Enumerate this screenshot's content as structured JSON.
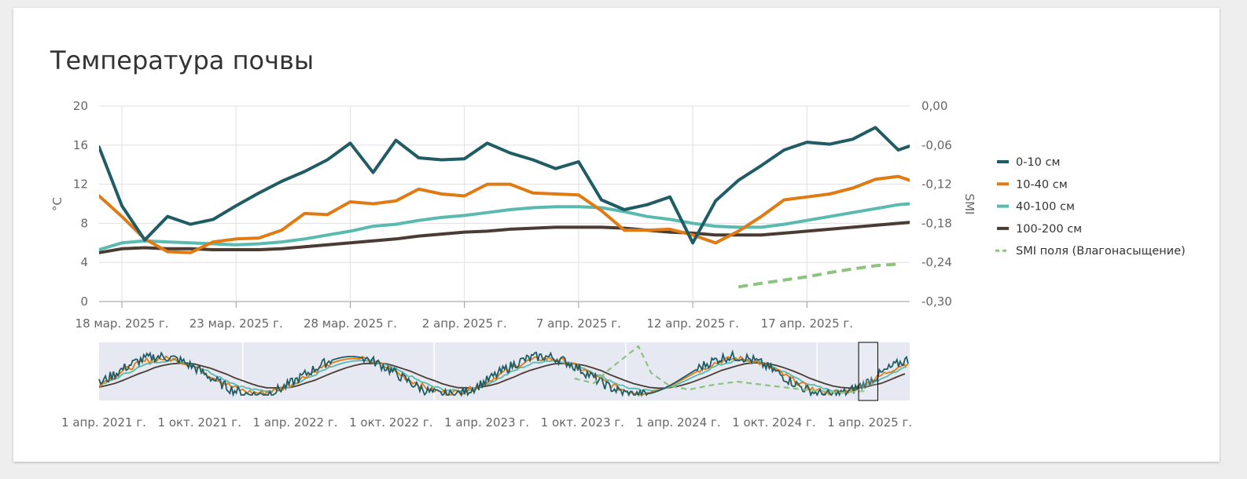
{
  "page": {
    "title": "Температура почвы"
  },
  "chart_data": {
    "type": "line",
    "title": "Температура почвы",
    "ylabel": "°C",
    "y2label": "SMI",
    "ylim": [
      0,
      20
    ],
    "y2lim": [
      -0.3,
      0.0
    ],
    "yticks": [
      "0",
      "4",
      "8",
      "12",
      "16",
      "20"
    ],
    "y2ticks": [
      "-0,30",
      "-0,24",
      "-0,18",
      "-0,12",
      "-0,06",
      "0,00"
    ],
    "x_range_days": [
      0,
      35.5
    ],
    "x_ticks": [
      {
        "day": 1,
        "label": "18 мар. 2025 г."
      },
      {
        "day": 6,
        "label": "23 мар. 2025 г."
      },
      {
        "day": 11,
        "label": "28 мар. 2025 г."
      },
      {
        "day": 16,
        "label": "2 апр. 2025 г."
      },
      {
        "day": 21,
        "label": "7 апр. 2025 г."
      },
      {
        "day": 26,
        "label": "12 апр. 2025 г."
      },
      {
        "day": 31,
        "label": "17 апр. 2025 г."
      }
    ],
    "legend_position": "right",
    "grid": true,
    "series": [
      {
        "name": "0-10 см",
        "color": "#1f5c64",
        "axis": "left",
        "points": [
          [
            0,
            15.8
          ],
          [
            1,
            9.8
          ],
          [
            2,
            6.3
          ],
          [
            3,
            8.7
          ],
          [
            4,
            7.9
          ],
          [
            5,
            8.4
          ],
          [
            6,
            9.8
          ],
          [
            7,
            11.1
          ],
          [
            8,
            12.3
          ],
          [
            9,
            13.3
          ],
          [
            10,
            14.5
          ],
          [
            11,
            16.2
          ],
          [
            12,
            13.2
          ],
          [
            13,
            16.5
          ],
          [
            14,
            14.7
          ],
          [
            15,
            14.5
          ],
          [
            16,
            14.6
          ],
          [
            17,
            16.2
          ],
          [
            18,
            15.2
          ],
          [
            19,
            14.5
          ],
          [
            20,
            13.6
          ],
          [
            21,
            14.3
          ],
          [
            22,
            10.4
          ],
          [
            23,
            9.4
          ],
          [
            24,
            9.9
          ],
          [
            25,
            10.7
          ],
          [
            26,
            6.0
          ],
          [
            27,
            10.3
          ],
          [
            28,
            12.4
          ],
          [
            29,
            13.9
          ],
          [
            30,
            15.5
          ],
          [
            31,
            16.3
          ],
          [
            32,
            16.1
          ],
          [
            33,
            16.6
          ],
          [
            34,
            17.8
          ],
          [
            35,
            15.5
          ],
          [
            35.5,
            15.9
          ]
        ]
      },
      {
        "name": "10-40 см",
        "color": "#e07b14",
        "axis": "left",
        "points": [
          [
            0,
            10.8
          ],
          [
            1,
            8.7
          ],
          [
            2,
            6.4
          ],
          [
            3,
            5.1
          ],
          [
            4,
            5.0
          ],
          [
            5,
            6.1
          ],
          [
            6,
            6.4
          ],
          [
            7,
            6.5
          ],
          [
            8,
            7.3
          ],
          [
            9,
            9.0
          ],
          [
            10,
            8.9
          ],
          [
            11,
            10.2
          ],
          [
            12,
            10.0
          ],
          [
            13,
            10.3
          ],
          [
            14,
            11.5
          ],
          [
            15,
            11.0
          ],
          [
            16,
            10.8
          ],
          [
            17,
            12.0
          ],
          [
            18,
            12.0
          ],
          [
            19,
            11.1
          ],
          [
            20,
            11.0
          ],
          [
            21,
            10.9
          ],
          [
            22,
            9.3
          ],
          [
            23,
            7.3
          ],
          [
            24,
            7.3
          ],
          [
            25,
            7.4
          ],
          [
            26,
            6.8
          ],
          [
            27,
            6.0
          ],
          [
            28,
            7.2
          ],
          [
            29,
            8.7
          ],
          [
            30,
            10.4
          ],
          [
            31,
            10.7
          ],
          [
            32,
            11.0
          ],
          [
            33,
            11.6
          ],
          [
            34,
            12.5
          ],
          [
            35,
            12.8
          ],
          [
            35.5,
            12.4
          ]
        ]
      },
      {
        "name": "40-100 см",
        "color": "#5bbab0",
        "axis": "left",
        "points": [
          [
            0,
            5.3
          ],
          [
            1,
            6.0
          ],
          [
            2,
            6.2
          ],
          [
            3,
            6.1
          ],
          [
            4,
            6.0
          ],
          [
            5,
            5.9
          ],
          [
            6,
            5.8
          ],
          [
            7,
            5.9
          ],
          [
            8,
            6.1
          ],
          [
            9,
            6.4
          ],
          [
            10,
            6.8
          ],
          [
            11,
            7.2
          ],
          [
            12,
            7.7
          ],
          [
            13,
            7.9
          ],
          [
            14,
            8.3
          ],
          [
            15,
            8.6
          ],
          [
            16,
            8.8
          ],
          [
            17,
            9.1
          ],
          [
            18,
            9.4
          ],
          [
            19,
            9.6
          ],
          [
            20,
            9.7
          ],
          [
            21,
            9.7
          ],
          [
            22,
            9.6
          ],
          [
            23,
            9.2
          ],
          [
            24,
            8.7
          ],
          [
            25,
            8.4
          ],
          [
            26,
            8.0
          ],
          [
            27,
            7.7
          ],
          [
            28,
            7.6
          ],
          [
            29,
            7.6
          ],
          [
            30,
            7.9
          ],
          [
            31,
            8.3
          ],
          [
            32,
            8.7
          ],
          [
            33,
            9.1
          ],
          [
            34,
            9.5
          ],
          [
            35,
            9.9
          ],
          [
            35.5,
            10.0
          ]
        ]
      },
      {
        "name": "100-200 см",
        "color": "#4a3b33",
        "axis": "left",
        "points": [
          [
            0,
            5.0
          ],
          [
            1,
            5.4
          ],
          [
            2,
            5.5
          ],
          [
            3,
            5.4
          ],
          [
            4,
            5.4
          ],
          [
            5,
            5.3
          ],
          [
            6,
            5.3
          ],
          [
            7,
            5.3
          ],
          [
            8,
            5.4
          ],
          [
            9,
            5.6
          ],
          [
            10,
            5.8
          ],
          [
            11,
            6.0
          ],
          [
            12,
            6.2
          ],
          [
            13,
            6.4
          ],
          [
            14,
            6.7
          ],
          [
            15,
            6.9
          ],
          [
            16,
            7.1
          ],
          [
            17,
            7.2
          ],
          [
            18,
            7.4
          ],
          [
            19,
            7.5
          ],
          [
            20,
            7.6
          ],
          [
            21,
            7.6
          ],
          [
            22,
            7.6
          ],
          [
            23,
            7.5
          ],
          [
            24,
            7.3
          ],
          [
            25,
            7.1
          ],
          [
            26,
            7.0
          ],
          [
            27,
            6.8
          ],
          [
            28,
            6.8
          ],
          [
            29,
            6.8
          ],
          [
            30,
            7.0
          ],
          [
            31,
            7.2
          ],
          [
            32,
            7.4
          ],
          [
            33,
            7.6
          ],
          [
            34,
            7.8
          ],
          [
            35,
            8.0
          ],
          [
            35.5,
            8.1
          ]
        ]
      },
      {
        "name": "SMI поля (Влагонасыщение)",
        "color": "#8cc37d",
        "axis": "right",
        "dashed": true,
        "points": [
          [
            28,
            -0.2775
          ],
          [
            29,
            -0.272
          ],
          [
            30,
            -0.267
          ],
          [
            31,
            -0.262
          ],
          [
            32,
            -0.2555
          ],
          [
            33,
            -0.25
          ],
          [
            34,
            -0.245
          ],
          [
            35,
            -0.2425
          ]
        ]
      }
    ],
    "navigator": {
      "x_labels": [
        "1 апр. 2021 г.",
        "1 окт. 2021 г.",
        "1 апр. 2022 г.",
        "1 окт. 2022 г.",
        "1 апр. 2023 г.",
        "1 окт. 2023 г.",
        "1 апр. 2024 г.",
        "1 окт. 2024 г.",
        "1 апр. 2025 г."
      ],
      "range_months": [
        0,
        50.8
      ],
      "selection_months": [
        47.6,
        48.8
      ],
      "label_months": [
        0,
        6,
        12,
        18,
        24,
        30,
        36,
        42,
        48
      ]
    }
  }
}
